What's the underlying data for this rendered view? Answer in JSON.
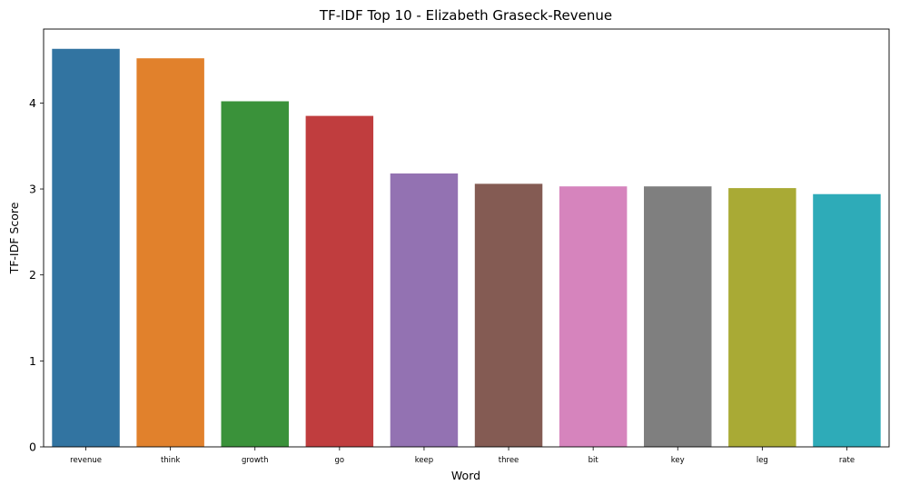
{
  "chart_data": {
    "type": "bar",
    "title": "TF-IDF Top 10 - Elizabeth Graseck-Revenue",
    "xlabel": "Word",
    "ylabel": "TF-IDF Score",
    "categories": [
      "revenue",
      "think",
      "growth",
      "go",
      "keep",
      "three",
      "bit",
      "key",
      "leg",
      "rate"
    ],
    "values": [
      4.63,
      4.52,
      4.02,
      3.85,
      3.18,
      3.06,
      3.03,
      3.03,
      3.01,
      2.94
    ],
    "colors": [
      "#3274a1",
      "#e1812c",
      "#3a923a",
      "#c03d3e",
      "#9372b2",
      "#845b53",
      "#d684bd",
      "#7f7f7f",
      "#a9aa35",
      "#2eabb8"
    ],
    "ylim": [
      0,
      4.86
    ],
    "yticks": [
      0,
      1,
      2,
      3,
      4
    ],
    "grid": false,
    "legend": "none"
  }
}
